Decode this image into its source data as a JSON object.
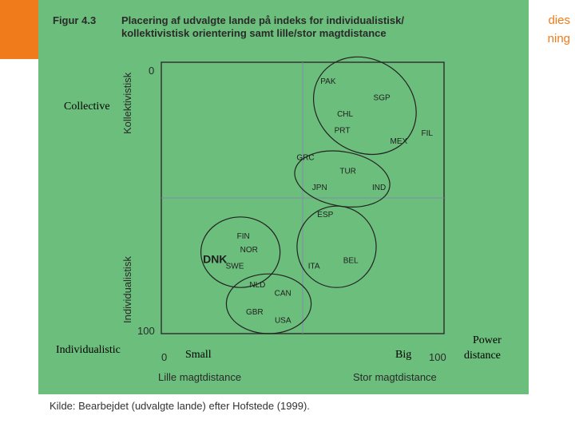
{
  "brand": {
    "line1": "dies",
    "line2": "ning",
    "accent": "#f07b1a"
  },
  "figure": {
    "label": "Figur 4.3",
    "title_line1": "Placering af udvalgte lande på indeks for individualistisk/",
    "title_line2": "kollektivistisk orientering samt lille/stor magtdistance",
    "source": "Kilde:  Bearbejdet (udvalgte lande) efter Hofstede (1999)."
  },
  "annotations": {
    "collective": "Collective",
    "individualistic": "Individualistic",
    "small": "Small",
    "big": "Big",
    "power_line1": "Power",
    "power_line2": "distance"
  },
  "chart_data": {
    "type": "scatter",
    "ylabel_top": "Kollektivistisk",
    "ylabel_bottom": "Individualistisk",
    "xlabel_left": "Lille magtdistance",
    "xlabel_right": "Stor magtdistance",
    "x_ticks": [
      "0",
      "100"
    ],
    "y_ticks": [
      "0",
      "100"
    ],
    "xlim": [
      0,
      100
    ],
    "ylim": [
      0,
      100
    ],
    "y_inverted": true,
    "points": [
      {
        "label": "PAK",
        "x": 59,
        "y": 8
      },
      {
        "label": "SGP",
        "x": 78,
        "y": 14
      },
      {
        "label": "CHL",
        "x": 65,
        "y": 20
      },
      {
        "label": "PRT",
        "x": 64,
        "y": 26
      },
      {
        "label": "MEX",
        "x": 84,
        "y": 30
      },
      {
        "label": "FIL",
        "x": 94,
        "y": 27
      },
      {
        "label": "GRC",
        "x": 51,
        "y": 36
      },
      {
        "label": "TUR",
        "x": 66,
        "y": 41
      },
      {
        "label": "JPN",
        "x": 56,
        "y": 47
      },
      {
        "label": "IND",
        "x": 77,
        "y": 47
      },
      {
        "label": "ESP",
        "x": 58,
        "y": 57
      },
      {
        "label": "FIN",
        "x": 29,
        "y": 65
      },
      {
        "label": "NOR",
        "x": 31,
        "y": 70
      },
      {
        "label": "DNK",
        "x": 19,
        "y": 74
      },
      {
        "label": "SWE",
        "x": 26,
        "y": 76
      },
      {
        "label": "ITA",
        "x": 54,
        "y": 76
      },
      {
        "label": "BEL",
        "x": 67,
        "y": 74
      },
      {
        "label": "NLD",
        "x": 34,
        "y": 83
      },
      {
        "label": "CAN",
        "x": 43,
        "y": 86
      },
      {
        "label": "GBR",
        "x": 33,
        "y": 93
      },
      {
        "label": "USA",
        "x": 43,
        "y": 96
      }
    ],
    "clusters": [
      {
        "center": [
          72,
          16
        ],
        "rx": 19,
        "ry": 17,
        "rotate": 35
      },
      {
        "center": [
          64,
          43
        ],
        "rx": 17,
        "ry": 10,
        "rotate": 10
      },
      {
        "center": [
          28,
          70
        ],
        "rx": 14,
        "ry": 13,
        "rotate": 0
      },
      {
        "center": [
          62,
          68
        ],
        "rx": 14,
        "ry": 15,
        "rotate": 0
      },
      {
        "center": [
          38,
          89
        ],
        "rx": 15,
        "ry": 11,
        "rotate": 0
      }
    ],
    "midlines": {
      "x": 50,
      "y": 50
    }
  }
}
